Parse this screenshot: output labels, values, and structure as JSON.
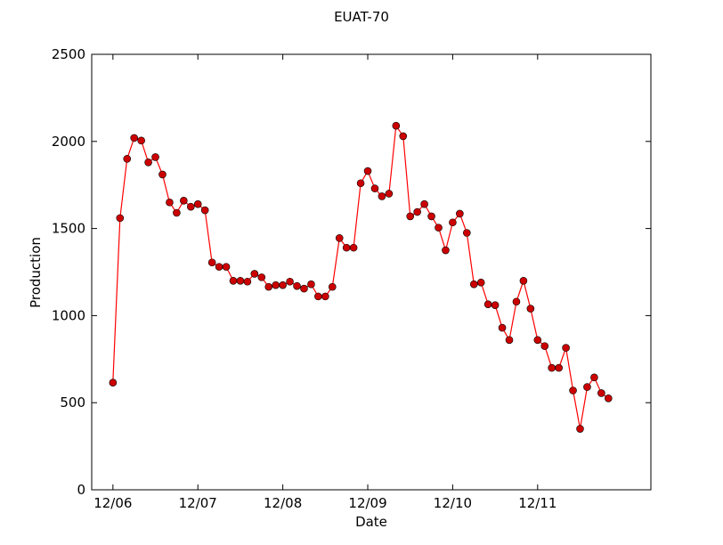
{
  "chart_data": {
    "type": "line",
    "title": "EUAT-70",
    "xlabel": "Date",
    "ylabel": "Production",
    "x_tick_labels": [
      "12/06",
      "12/07",
      "12/08",
      "12/09",
      "12/10",
      "12/11"
    ],
    "x_ticks": [
      0,
      12,
      24,
      36,
      48,
      60
    ],
    "xlim": [
      -3,
      76
    ],
    "y_ticks": [
      0,
      500,
      1000,
      1500,
      2000,
      2500
    ],
    "ylim": [
      0,
      2500
    ],
    "grid": false,
    "legend": "none",
    "series": [
      {
        "color": "#ff0000",
        "marker_fill": "#cc0000",
        "x": [
          0,
          1,
          2,
          3,
          4,
          5,
          6,
          7,
          8,
          9,
          10,
          11,
          12,
          13,
          14,
          15,
          16,
          17,
          18,
          19,
          20,
          21,
          22,
          23,
          24,
          25,
          26,
          27,
          28,
          29,
          30,
          31,
          32,
          33,
          34,
          35,
          36,
          37,
          38,
          39,
          40,
          41,
          42,
          43,
          44,
          45,
          46,
          47,
          48,
          49,
          50,
          51,
          52,
          53,
          54,
          55,
          56,
          57,
          58,
          59,
          60,
          61,
          62,
          63,
          64,
          65,
          66,
          67,
          68,
          69,
          70
        ],
        "y": [
          615,
          1560,
          1900,
          2020,
          2005,
          1880,
          1910,
          1810,
          1650,
          1590,
          1660,
          1625,
          1640,
          1605,
          1305,
          1280,
          1280,
          1200,
          1200,
          1195,
          1240,
          1220,
          1165,
          1175,
          1175,
          1195,
          1170,
          1155,
          1180,
          1110,
          1110,
          1165,
          1445,
          1390,
          1390,
          1760,
          1830,
          1730,
          1685,
          1700,
          2090,
          2030,
          1570,
          1595,
          1640,
          1570,
          1505,
          1375,
          1535,
          1585,
          1475,
          1180,
          1190,
          1065,
          1060,
          930,
          860,
          1080,
          1200,
          1040,
          860,
          825,
          700,
          700,
          815,
          570,
          350,
          590,
          645,
          555,
          525
        ]
      }
    ]
  }
}
